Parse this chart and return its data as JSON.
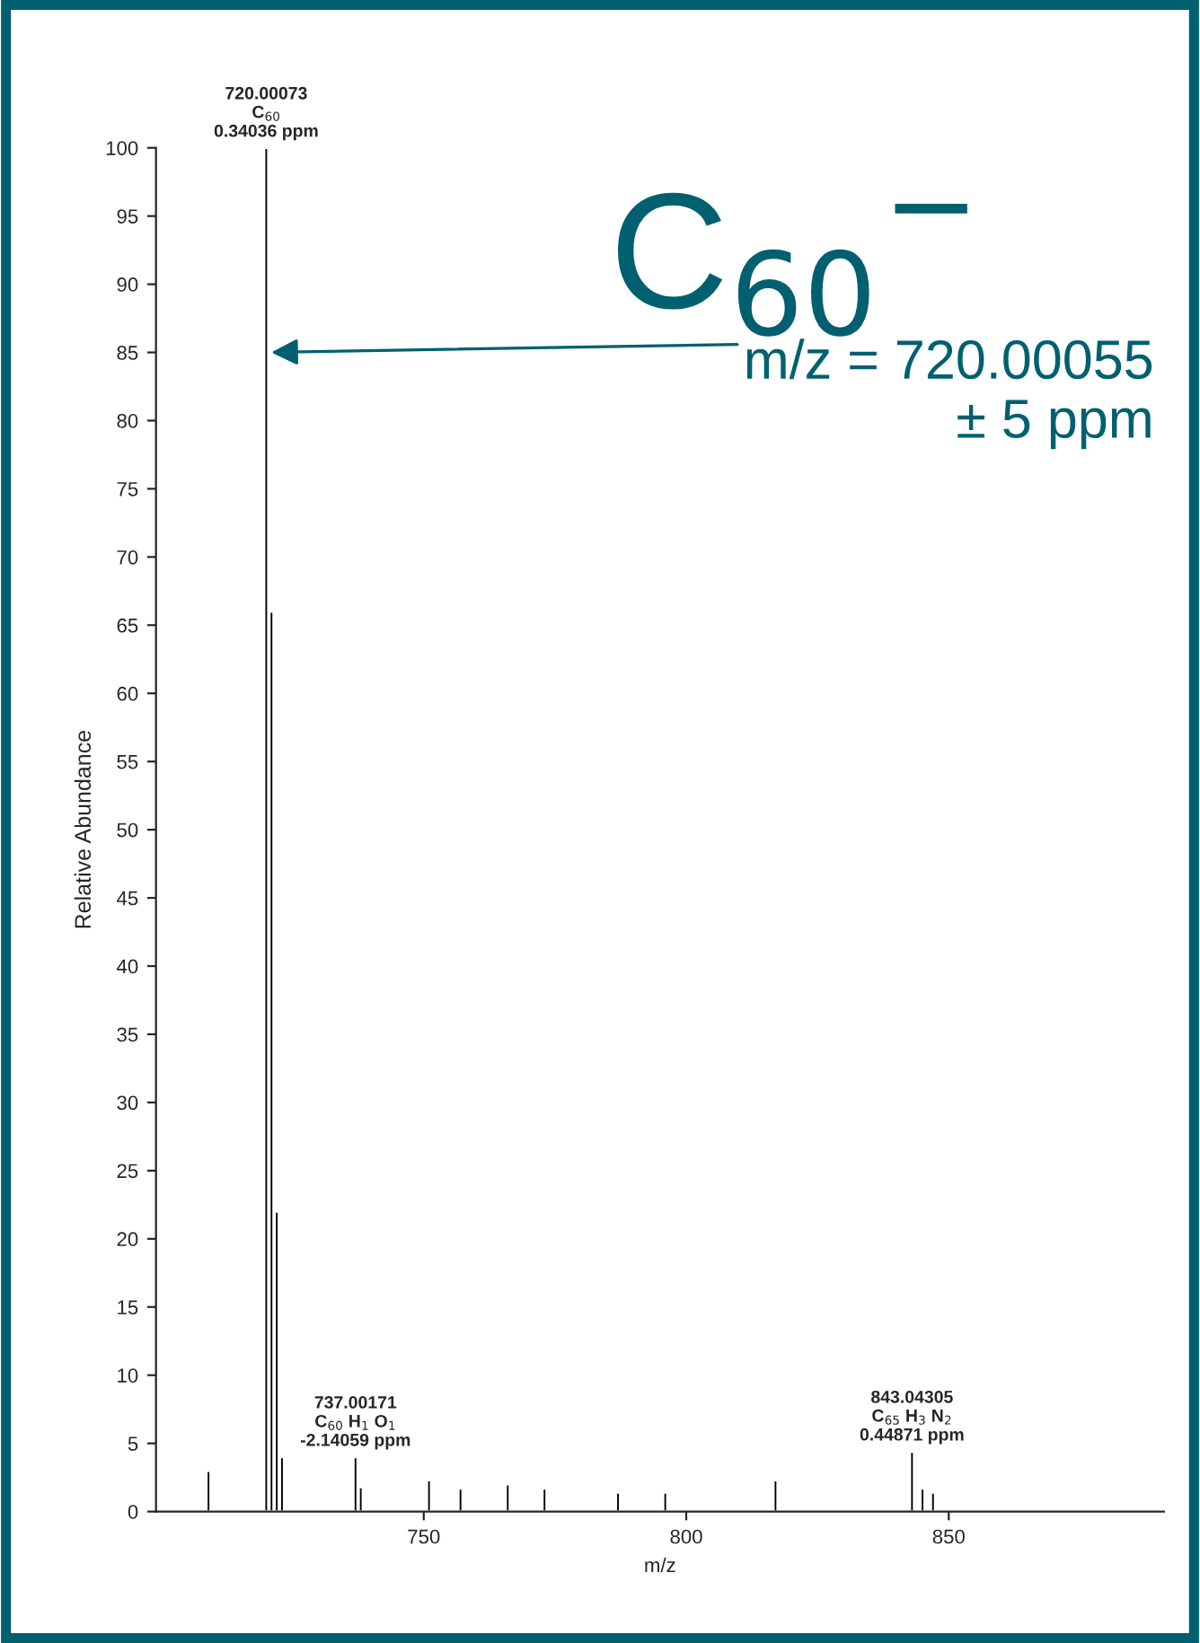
{
  "chart_data": {
    "type": "bar",
    "xlabel": "m/z",
    "ylabel": "Relative Abundance",
    "x": [
      709,
      720,
      721,
      722,
      723,
      737,
      738,
      751,
      757,
      766,
      773,
      787,
      796,
      817,
      843,
      845,
      847
    ],
    "series": [
      {
        "color": "#000000",
        "values": [
          3,
          100,
          66,
          22,
          4,
          4,
          1.8,
          2.3,
          1.7,
          2,
          1.7,
          1.4,
          1.4,
          2.3,
          4.4,
          1.7,
          1.4
        ]
      }
    ],
    "xlim": [
      699,
      891
    ],
    "xticks": [
      750,
      800,
      850
    ],
    "ylim": [
      0,
      100
    ],
    "yticks": [
      0,
      5,
      10,
      15,
      20,
      25,
      30,
      35,
      40,
      45,
      50,
      55,
      60,
      65,
      70,
      75,
      80,
      85,
      90,
      95,
      100
    ],
    "grid": false,
    "legend": false,
    "annotations": [
      {
        "text": "720.00073\nC$_{60}$\n0.34036 ppm",
        "x": 720,
        "y": 100
      },
      {
        "text": "737.00171\nC$_{60}$ H$_{1}$ O$_{1}$\n-2.14059 ppm",
        "x": 737,
        "y": 4
      },
      {
        "text": "843.04305\nC$_{65}$ H$_{3}$ N$_{2}$\n0.44871 ppm",
        "x": 843,
        "y": 4.4
      },
      "C$_{60}$$^{−}$",
      {
        "text": "m/z = 720.00055\n± 5 ppm",
        "x": 720,
        "y": 85
      }
    ]
  }
}
